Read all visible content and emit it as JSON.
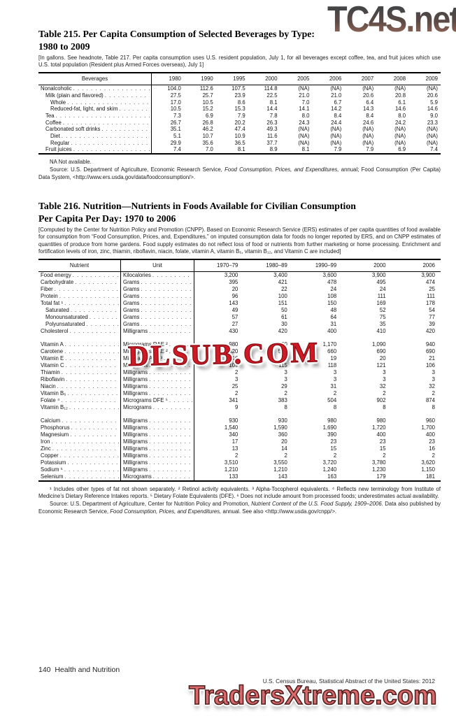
{
  "watermarks": {
    "top": "TC4S.net",
    "middle": "DLSUB.COM",
    "bottom": "TradersXtreme.com",
    "red": "#ce1a24",
    "salmon": "#d96a6c"
  },
  "table215": {
    "title_line1": "Table 215. Per Capita Consumption of Selected Beverages by Type:",
    "title_line2": "1980 to 2009",
    "headnote": "[In gallons. See headnote, Table 217. Per capita consumption uses U.S. resident population, July 1, for all beverages except coffee, tea, and fruit juices which use U.S. total population (Resident plus Armed Forces overseas), July 1]",
    "col_label_header": "Beverages",
    "year_headers": [
      "1980",
      "1990",
      "1995",
      "2000",
      "2005",
      "2006",
      "2007",
      "2008",
      "2009"
    ],
    "rows": [
      {
        "label": "Nonalcoholic",
        "indent": 0,
        "values": [
          "104.0",
          "112.6",
          "107.5",
          "114.8",
          "(NA)",
          "(NA)",
          "(NA)",
          "(NA)",
          "(NA)"
        ]
      },
      {
        "label": "Milk (plain and flavored)",
        "indent": 1,
        "values": [
          "27.5",
          "25.7",
          "23.9",
          "22.5",
          "21.0",
          "21.0",
          "20.6",
          "20.8",
          "20.6"
        ]
      },
      {
        "label": "Whole",
        "indent": 2,
        "values": [
          "17.0",
          "10.5",
          "8.6",
          "8.1",
          "7.0",
          "6.7",
          "6.4",
          "6.1",
          "5.9"
        ]
      },
      {
        "label": "Reduced-fat, light, and skim",
        "indent": 2,
        "values": [
          "10.5",
          "15.2",
          "15.3",
          "14.4",
          "14.1",
          "14.2",
          "14.3",
          "14.6",
          "14.6"
        ]
      },
      {
        "label": "Tea",
        "indent": 1,
        "values": [
          "7.3",
          "6.9",
          "7.9",
          "7.8",
          "8.0",
          "8.4",
          "8.4",
          "8.0",
          "9.0"
        ]
      },
      {
        "label": "Coffee",
        "indent": 1,
        "values": [
          "26.7",
          "26.8",
          "20.2",
          "26.3",
          "24.3",
          "24.4",
          "24.6",
          "24.2",
          "23.3"
        ]
      },
      {
        "label": "Carbonated soft drinks",
        "indent": 1,
        "values": [
          "35.1",
          "46.2",
          "47.4",
          "49.3",
          "(NA)",
          "(NA)",
          "(NA)",
          "(NA)",
          "(NA)"
        ]
      },
      {
        "label": "Diet",
        "indent": 2,
        "values": [
          "5.1",
          "10.7",
          "10.9",
          "11.6",
          "(NA)",
          "(NA)",
          "(NA)",
          "(NA)",
          "(NA)"
        ]
      },
      {
        "label": "Regular",
        "indent": 2,
        "values": [
          "29.9",
          "35.6",
          "36.5",
          "37.7",
          "(NA)",
          "(NA)",
          "(NA)",
          "(NA)",
          "(NA)"
        ]
      },
      {
        "label": "Fruit juices",
        "indent": 1,
        "values": [
          "7.4",
          "7.0",
          "8.1",
          "8.9",
          "8.1",
          "7.9",
          "7.9",
          "6.9",
          "7.4"
        ]
      }
    ],
    "na_note": "NA Not available.",
    "source_parts": [
      {
        "t": "Source: U.S. Department of Agriculture, Economic Research Service, "
      },
      {
        "t": "Food Consumption, Prices, and Expenditures,",
        "i": true
      },
      {
        "t": " annual; Food Consumption (Per Capita) Data System, <http://www.ers.usda.gov/data/foodconsumption/>."
      }
    ]
  },
  "table216": {
    "title_line1": "Table 216. Nutrition—Nutrients in Foods Available for Civilian Consumption",
    "title_line2": "Per Capita Per Day: 1970 to 2006",
    "headnote": "[Computed by the Center for Nutrition Policy and Promotion (CNPP). Based on Economic Research Service (ERS) estimates of per capita quantities of food available for consumption from “Food Consumption, Prices, and, Expenditures,” on imputed consumption data for foods no longer reported by ERS, and on CNPP estimates of quantities of produce from home gardens. Food supply estimates do not reflect loss of food or nutrients from further marketing or home processing. Enrichment and fortification levels of iron, zinc, thiamin, riboflavin, niacin, folate, vitamin A, vitamin B₆, vitamin B₁₂, and Vitamin C are included]",
    "nutrient_header": "Nutrient",
    "unit_header": "Unit",
    "year_headers": [
      "1970–79",
      "1980–89",
      "1990–99",
      "2000",
      "2006"
    ],
    "groups": [
      [
        {
          "label": "Food energy",
          "indent": 0,
          "unit": "Kilocalories",
          "values": [
            "3,200",
            "3,400",
            "3,600",
            "3,900",
            "3,900"
          ]
        },
        {
          "label": "Carbohydrate",
          "indent": 0,
          "unit": "Grams",
          "values": [
            "395",
            "421",
            "478",
            "495",
            "474"
          ]
        },
        {
          "label": "Fiber",
          "indent": 0,
          "unit": "Grams",
          "values": [
            "20",
            "22",
            "24",
            "24",
            "25"
          ]
        },
        {
          "label": "Protein",
          "indent": 0,
          "unit": "Grams",
          "values": [
            "96",
            "100",
            "108",
            "111",
            "111"
          ]
        },
        {
          "label": "Total fat ¹",
          "indent": 0,
          "unit": "Grams",
          "values": [
            "143",
            "151",
            "150",
            "169",
            "178"
          ]
        },
        {
          "label": "Saturated",
          "indent": 1,
          "unit": "Grams",
          "values": [
            "49",
            "50",
            "48",
            "52",
            "54"
          ]
        },
        {
          "label": "Monounsaturated",
          "indent": 1,
          "unit": "Grams",
          "values": [
            "57",
            "61",
            "64",
            "75",
            "77"
          ]
        },
        {
          "label": "Polyunsaturated",
          "indent": 1,
          "unit": "Grams",
          "values": [
            "27",
            "30",
            "31",
            "35",
            "39"
          ]
        },
        {
          "label": "Cholesterol",
          "indent": 0,
          "unit": "Milligrams",
          "values": [
            "430",
            "420",
            "400",
            "410",
            "420"
          ]
        }
      ],
      [
        {
          "label": "Vitamin A",
          "indent": 0,
          "unit": "Micrograms RAE ²",
          "values": [
            "980",
            "1,060",
            "1,170",
            "1,090",
            "940"
          ]
        },
        {
          "label": "Carotene",
          "indent": 0,
          "unit": "Micrograms RAE ²",
          "values": [
            "520",
            "560",
            "660",
            "690",
            "690"
          ]
        },
        {
          "label": "Vitamin E",
          "indent": 0,
          "unit": "Milligrams ATE ³",
          "values": [
            "16",
            "18",
            "19",
            "20",
            "21"
          ]
        },
        {
          "label": "Vitamin C",
          "indent": 0,
          "unit": "Milligrams",
          "values": [
            "109",
            "115",
            "118",
            "121",
            "106"
          ]
        },
        {
          "label": "Thiamin",
          "indent": 0,
          "unit": "Milligrams",
          "values": [
            "2",
            "3",
            "3",
            "3",
            "3"
          ]
        },
        {
          "label": "Riboflavin",
          "indent": 0,
          "unit": "Milligrams",
          "values": [
            "3",
            "3",
            "3",
            "3",
            "3"
          ]
        },
        {
          "label": "Niacin",
          "indent": 0,
          "unit": "Milligrams",
          "values": [
            "25",
            "29",
            "31",
            "32",
            "32"
          ]
        },
        {
          "label": "Vitamin B₆",
          "indent": 0,
          "unit": "Milligrams",
          "values": [
            "2",
            "2",
            "2",
            "2",
            "2"
          ]
        },
        {
          "label": "Folate ⁴",
          "indent": 0,
          "unit": "Micrograms DFE ⁵",
          "values": [
            "341",
            "383",
            "504",
            "902",
            "874"
          ]
        },
        {
          "label": "Vitamin B₁₂",
          "indent": 0,
          "unit": "Micrograms",
          "values": [
            "9",
            "8",
            "8",
            "8",
            "8"
          ]
        }
      ],
      [
        {
          "label": "Calcium",
          "indent": 0,
          "unit": "Milligrams",
          "values": [
            "930",
            "930",
            "980",
            "980",
            "960"
          ]
        },
        {
          "label": "Phosphorus",
          "indent": 0,
          "unit": "Milligrams",
          "values": [
            "1,540",
            "1,590",
            "1,690",
            "1,720",
            "1,700"
          ]
        },
        {
          "label": "Magnesium",
          "indent": 0,
          "unit": "Milligrams",
          "values": [
            "340",
            "360",
            "390",
            "400",
            "400"
          ]
        },
        {
          "label": "Iron",
          "indent": 0,
          "unit": "Milligrams",
          "values": [
            "17",
            "20",
            "23",
            "23",
            "23"
          ]
        },
        {
          "label": "Zinc",
          "indent": 0,
          "unit": "Milligrams",
          "values": [
            "13",
            "14",
            "15",
            "15",
            "16"
          ]
        },
        {
          "label": "Copper",
          "indent": 0,
          "unit": "Milligrams",
          "values": [
            "2",
            "2",
            "2",
            "2",
            "2"
          ]
        },
        {
          "label": "Potassium",
          "indent": 0,
          "unit": "Milligrams",
          "values": [
            "3,510",
            "3,550",
            "3,720",
            "3,780",
            "3,620"
          ]
        },
        {
          "label": "Sodium ⁶",
          "indent": 0,
          "unit": "Milligrams",
          "values": [
            "1,210",
            "1,210",
            "1,240",
            "1,230",
            "1,150"
          ]
        },
        {
          "label": "Selenium",
          "indent": 0,
          "unit": "Micrograms",
          "values": [
            "133",
            "143",
            "163",
            "179",
            "181"
          ]
        }
      ]
    ],
    "footnotes": "¹ Includes other types of fat not shown separately. ² Retinol activity equivalents. ³ Alpha-Tocopherol equivalents. ⁴ Reflects new terminology from Institute of Medicine’s Dietary Reference Intakes reports. ⁵ Dietary Folate Equivalents (DFE). ⁶ Does not include amount from processed foods; underestimates actual availability.",
    "source_parts": [
      {
        "t": "Source: U.S. Department of Agriculture, Center for Nutrition Policy and Promotion, "
      },
      {
        "t": "Nutrient Content of the U.S. Food Supply, 1909–2006.",
        "i": true
      },
      {
        "t": " Data also published by Economic Research Service, "
      },
      {
        "t": "Food Consumption, Prices, and Expenditures,",
        "i": true
      },
      {
        "t": " annual. See also <http://www.usda.gov/cnpp/>."
      }
    ]
  },
  "footer": {
    "page_label": "140  Health and Nutrition",
    "credit": "U.S. Census Bureau, Statistical Abstract of the United States: 2012"
  }
}
